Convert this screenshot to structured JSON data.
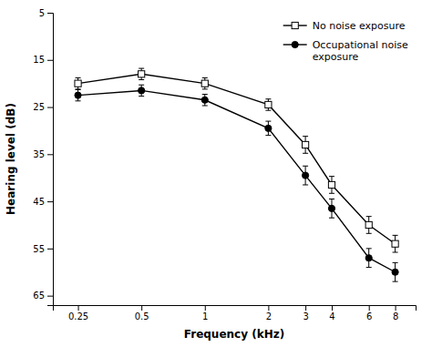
{
  "chart_data": {
    "type": "line",
    "x": [
      0.25,
      0.5,
      1,
      2,
      3,
      4,
      6,
      8
    ],
    "xlabel": "Frequency (kHz)",
    "ylabel": "Hearing level (dB)",
    "xlim": [
      0.19,
      10.0
    ],
    "xticks": [
      0.25,
      0.5,
      1,
      2,
      3,
      4,
      6,
      8
    ],
    "ylim": [
      67,
      5
    ],
    "yticks": [
      5,
      15,
      25,
      35,
      45,
      55,
      65
    ],
    "log": "x",
    "grid": false,
    "legend": "upper right",
    "series": [
      {
        "name": "No noise exposure",
        "color": "#000000",
        "marker": "open-square",
        "line_style": "solid",
        "values": [
          20.0,
          18.0,
          20.0,
          24.5,
          33.0,
          41.5,
          50.0,
          54.0
        ],
        "errors": [
          1.2,
          1.2,
          1.2,
          1.2,
          1.8,
          1.8,
          1.8,
          1.8
        ]
      },
      {
        "name": "Occupational noise\nexposure",
        "color": "#000000",
        "marker": "filled-circle",
        "line_style": "solid",
        "values": [
          22.5,
          21.5,
          23.5,
          29.5,
          39.5,
          46.5,
          57.0,
          60.0
        ],
        "errors": [
          1.2,
          1.2,
          1.2,
          1.5,
          2.0,
          2.0,
          2.0,
          2.0
        ]
      }
    ]
  }
}
